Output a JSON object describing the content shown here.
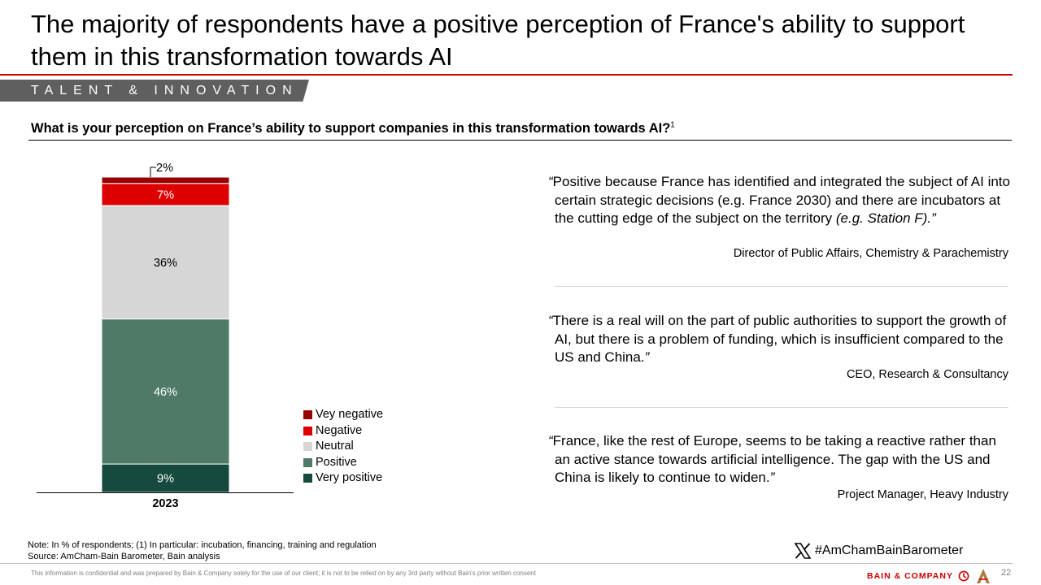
{
  "title": "The majority of respondents have a positive perception of France's ability to support them in this transformation towards AI",
  "section": "TALENT & INNOVATION",
  "question": "What is your perception on France’s ability to support companies in this transformation towards AI?",
  "question_footnote": "1",
  "chart_data": {
    "type": "bar",
    "stacked": true,
    "categories": [
      "2023"
    ],
    "unit": "%",
    "series": [
      {
        "name": "Very positive",
        "values": [
          9
        ],
        "label": "9%",
        "color": "#154a3c",
        "label_color": "#ffffff"
      },
      {
        "name": "Positive",
        "values": [
          46
        ],
        "label": "46%",
        "color": "#4f7a68",
        "label_color": "#ffffff"
      },
      {
        "name": "Neutral",
        "values": [
          36
        ],
        "label": "36%",
        "color": "#d6d6d6",
        "label_color": "#000000"
      },
      {
        "name": "Negative",
        "values": [
          7
        ],
        "label": "7%",
        "color": "#dd0000",
        "label_color": "#ffffff"
      },
      {
        "name": "Vey negative",
        "values": [
          2
        ],
        "label": "2%",
        "color": "#990000",
        "label_color": "#000000"
      }
    ],
    "ylim": [
      0,
      100
    ],
    "legend_position": "right-bottom",
    "legend_order": [
      "Vey negative",
      "Negative",
      "Neutral",
      "Positive",
      "Very positive"
    ]
  },
  "quotes": [
    {
      "open": "“",
      "text": "Positive because France has identified and integrated the subject of AI into certain strategic decisions (e.g. France 2030) and there are incubators at the cutting edge of the subject on the territory ",
      "emph": "(e.g. Station F).",
      "close": "”",
      "attribution": "Director of Public Affairs, Chemistry & Parachemistry"
    },
    {
      "open": "“",
      "text": "There is a real will on the part of public authorities to support the growth of AI, but there is a problem of funding, which is insufficient compared to the US and China.",
      "emph": "",
      "close": "”",
      "attribution": "CEO, Research & Consultancy"
    },
    {
      "open": "“",
      "text": "France, like the rest of Europe, seems to be taking a reactive rather than an active stance towards artificial intelligence. The gap with the US and China is likely to continue to widen.",
      "emph": "",
      "close": "”",
      "attribution": "Project Manager, Heavy Industry"
    }
  ],
  "note": "Note: In % of respondents; (1) In particular: incubation, financing, training and regulation",
  "source": "Source: AmCham-Bain Barometer, Bain analysis",
  "hashtag": "#AmChamBainBarometer",
  "hashtag_icon": "x-logo-icon",
  "confidential": "This information is confidential and was prepared by Bain & Company solely for the use of our client; it is not to be relied on by any 3rd party without Bain's prior written consent",
  "brand": "BAIN & COMPANY",
  "page_number": "22",
  "colors": {
    "accent": "#cc0000",
    "banner": "#5f5f5f"
  }
}
